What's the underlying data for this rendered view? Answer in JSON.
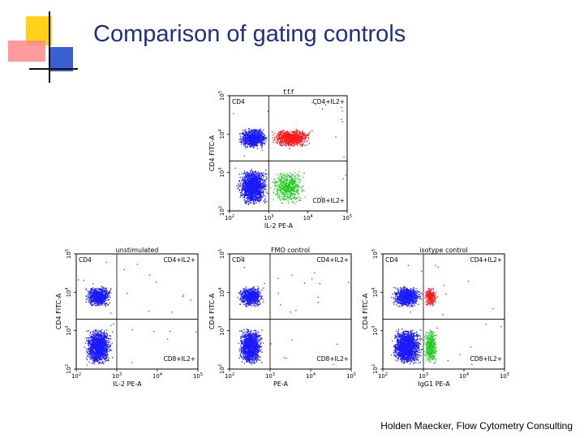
{
  "slide": {
    "title": "Comparison of gating controls",
    "footer": "Holden Maecker, Flow Cytometry Consulting"
  },
  "colors": {
    "title": "#1f2f86",
    "cd4_events": "#1a1aff",
    "double_positive_events": "#ff1a1a",
    "cd8_positive_events": "#22cc22",
    "deco_yellow": "#ffd21a",
    "deco_pink": "#ff8a8a",
    "deco_blue": "#3a5fd0"
  },
  "chart_data": [
    {
      "type": "scatter",
      "title": "f.f.f",
      "xlabel": "IL-2 PE-A",
      "ylabel": "CD4 FITC-A",
      "x_scale": "log",
      "y_scale": "log",
      "x_ticks": [
        "10^2",
        "10^3",
        "10^4",
        "10^5"
      ],
      "y_ticks": [
        "10^2",
        "10^3",
        "10^4",
        "10^5"
      ],
      "xlim": [
        100,
        100000
      ],
      "ylim": [
        100,
        100000
      ],
      "gate_x": 1000,
      "gate_y": 2000,
      "quadrant_labels": {
        "top_left": "CD4",
        "top_right": "CD4+IL2+",
        "bottom_right": "CD8+IL2+"
      },
      "clusters": [
        {
          "color": "cd4_events",
          "x": [
            150,
            1000
          ],
          "y": [
            4500,
            14000
          ],
          "density": 1.0
        },
        {
          "color": "cd4_events",
          "x": [
            150,
            1000
          ],
          "y": [
            150,
            1200
          ],
          "density": 1.0
        },
        {
          "color": "double_positive_events",
          "x": [
            1000,
            14000
          ],
          "y": [
            5000,
            13000
          ],
          "density": 0.85
        },
        {
          "color": "cd8_positive_events",
          "x": [
            1000,
            9000
          ],
          "y": [
            160,
            1100
          ],
          "density": 0.35
        }
      ]
    },
    {
      "type": "scatter",
      "title": "unstimulated",
      "xlabel": "IL-2 PE-A",
      "ylabel": "CD4 FITC-A",
      "x_scale": "log",
      "y_scale": "log",
      "x_ticks": [
        "10^2",
        "10^3",
        "10^4",
        "10^5"
      ],
      "y_ticks": [
        "10^2",
        "10^3",
        "10^4",
        "10^5"
      ],
      "xlim": [
        100,
        100000
      ],
      "ylim": [
        100,
        100000
      ],
      "gate_x": 1000,
      "gate_y": 2000,
      "quadrant_labels": {
        "top_left": "CD4",
        "top_right": "CD4+IL2+",
        "bottom_right": "CD8+IL2+"
      },
      "clusters": [
        {
          "color": "cd4_events",
          "x": [
            150,
            800
          ],
          "y": [
            4500,
            14000
          ],
          "density": 1.0
        },
        {
          "color": "cd4_events",
          "x": [
            150,
            800
          ],
          "y": [
            140,
            1100
          ],
          "density": 1.0
        }
      ]
    },
    {
      "type": "scatter",
      "title": "FMO control",
      "xlabel": "PE-A",
      "ylabel": "CD4 FITC-A",
      "x_scale": "log",
      "y_scale": "log",
      "x_ticks": [
        "10^2",
        "10^3",
        "10^4",
        "10^5"
      ],
      "y_ticks": [
        "10^2",
        "10^3",
        "10^4",
        "10^5"
      ],
      "xlim": [
        100,
        100000
      ],
      "ylim": [
        100,
        100000
      ],
      "gate_x": 1000,
      "gate_y": 2000,
      "quadrant_labels": {
        "top_left": "CD4",
        "top_right": "CD4+IL2+",
        "bottom_right": "CD8+IL2+"
      },
      "clusters": [
        {
          "color": "cd4_events",
          "x": [
            150,
            700
          ],
          "y": [
            4500,
            14000
          ],
          "density": 1.0
        },
        {
          "color": "cd4_events",
          "x": [
            150,
            700
          ],
          "y": [
            140,
            1100
          ],
          "density": 1.0
        }
      ]
    },
    {
      "type": "scatter",
      "title": "isotype control",
      "xlabel": "IgG1 PE-A",
      "ylabel": "CD4 FITC-A",
      "x_scale": "log",
      "y_scale": "log",
      "x_ticks": [
        "10^2",
        "10^3",
        "10^4",
        "10^5"
      ],
      "y_ticks": [
        "10^2",
        "10^3",
        "10^4",
        "10^5"
      ],
      "xlim": [
        100,
        100000
      ],
      "ylim": [
        100,
        100000
      ],
      "gate_x": 1000,
      "gate_y": 2000,
      "quadrant_labels": {
        "top_left": "CD4",
        "top_right": "CD4+IL2+",
        "bottom_right": "CD8+IL2+"
      },
      "clusters": [
        {
          "color": "cd4_events",
          "x": [
            150,
            1000
          ],
          "y": [
            4500,
            14000
          ],
          "density": 1.0
        },
        {
          "color": "cd4_events",
          "x": [
            150,
            1000
          ],
          "y": [
            140,
            1100
          ],
          "density": 1.0
        },
        {
          "color": "double_positive_events",
          "x": [
            1000,
            2200
          ],
          "y": [
            4500,
            13000
          ],
          "density": 0.7
        },
        {
          "color": "cd8_positive_events",
          "x": [
            1000,
            2200
          ],
          "y": [
            150,
            1100
          ],
          "density": 0.7
        }
      ]
    }
  ]
}
